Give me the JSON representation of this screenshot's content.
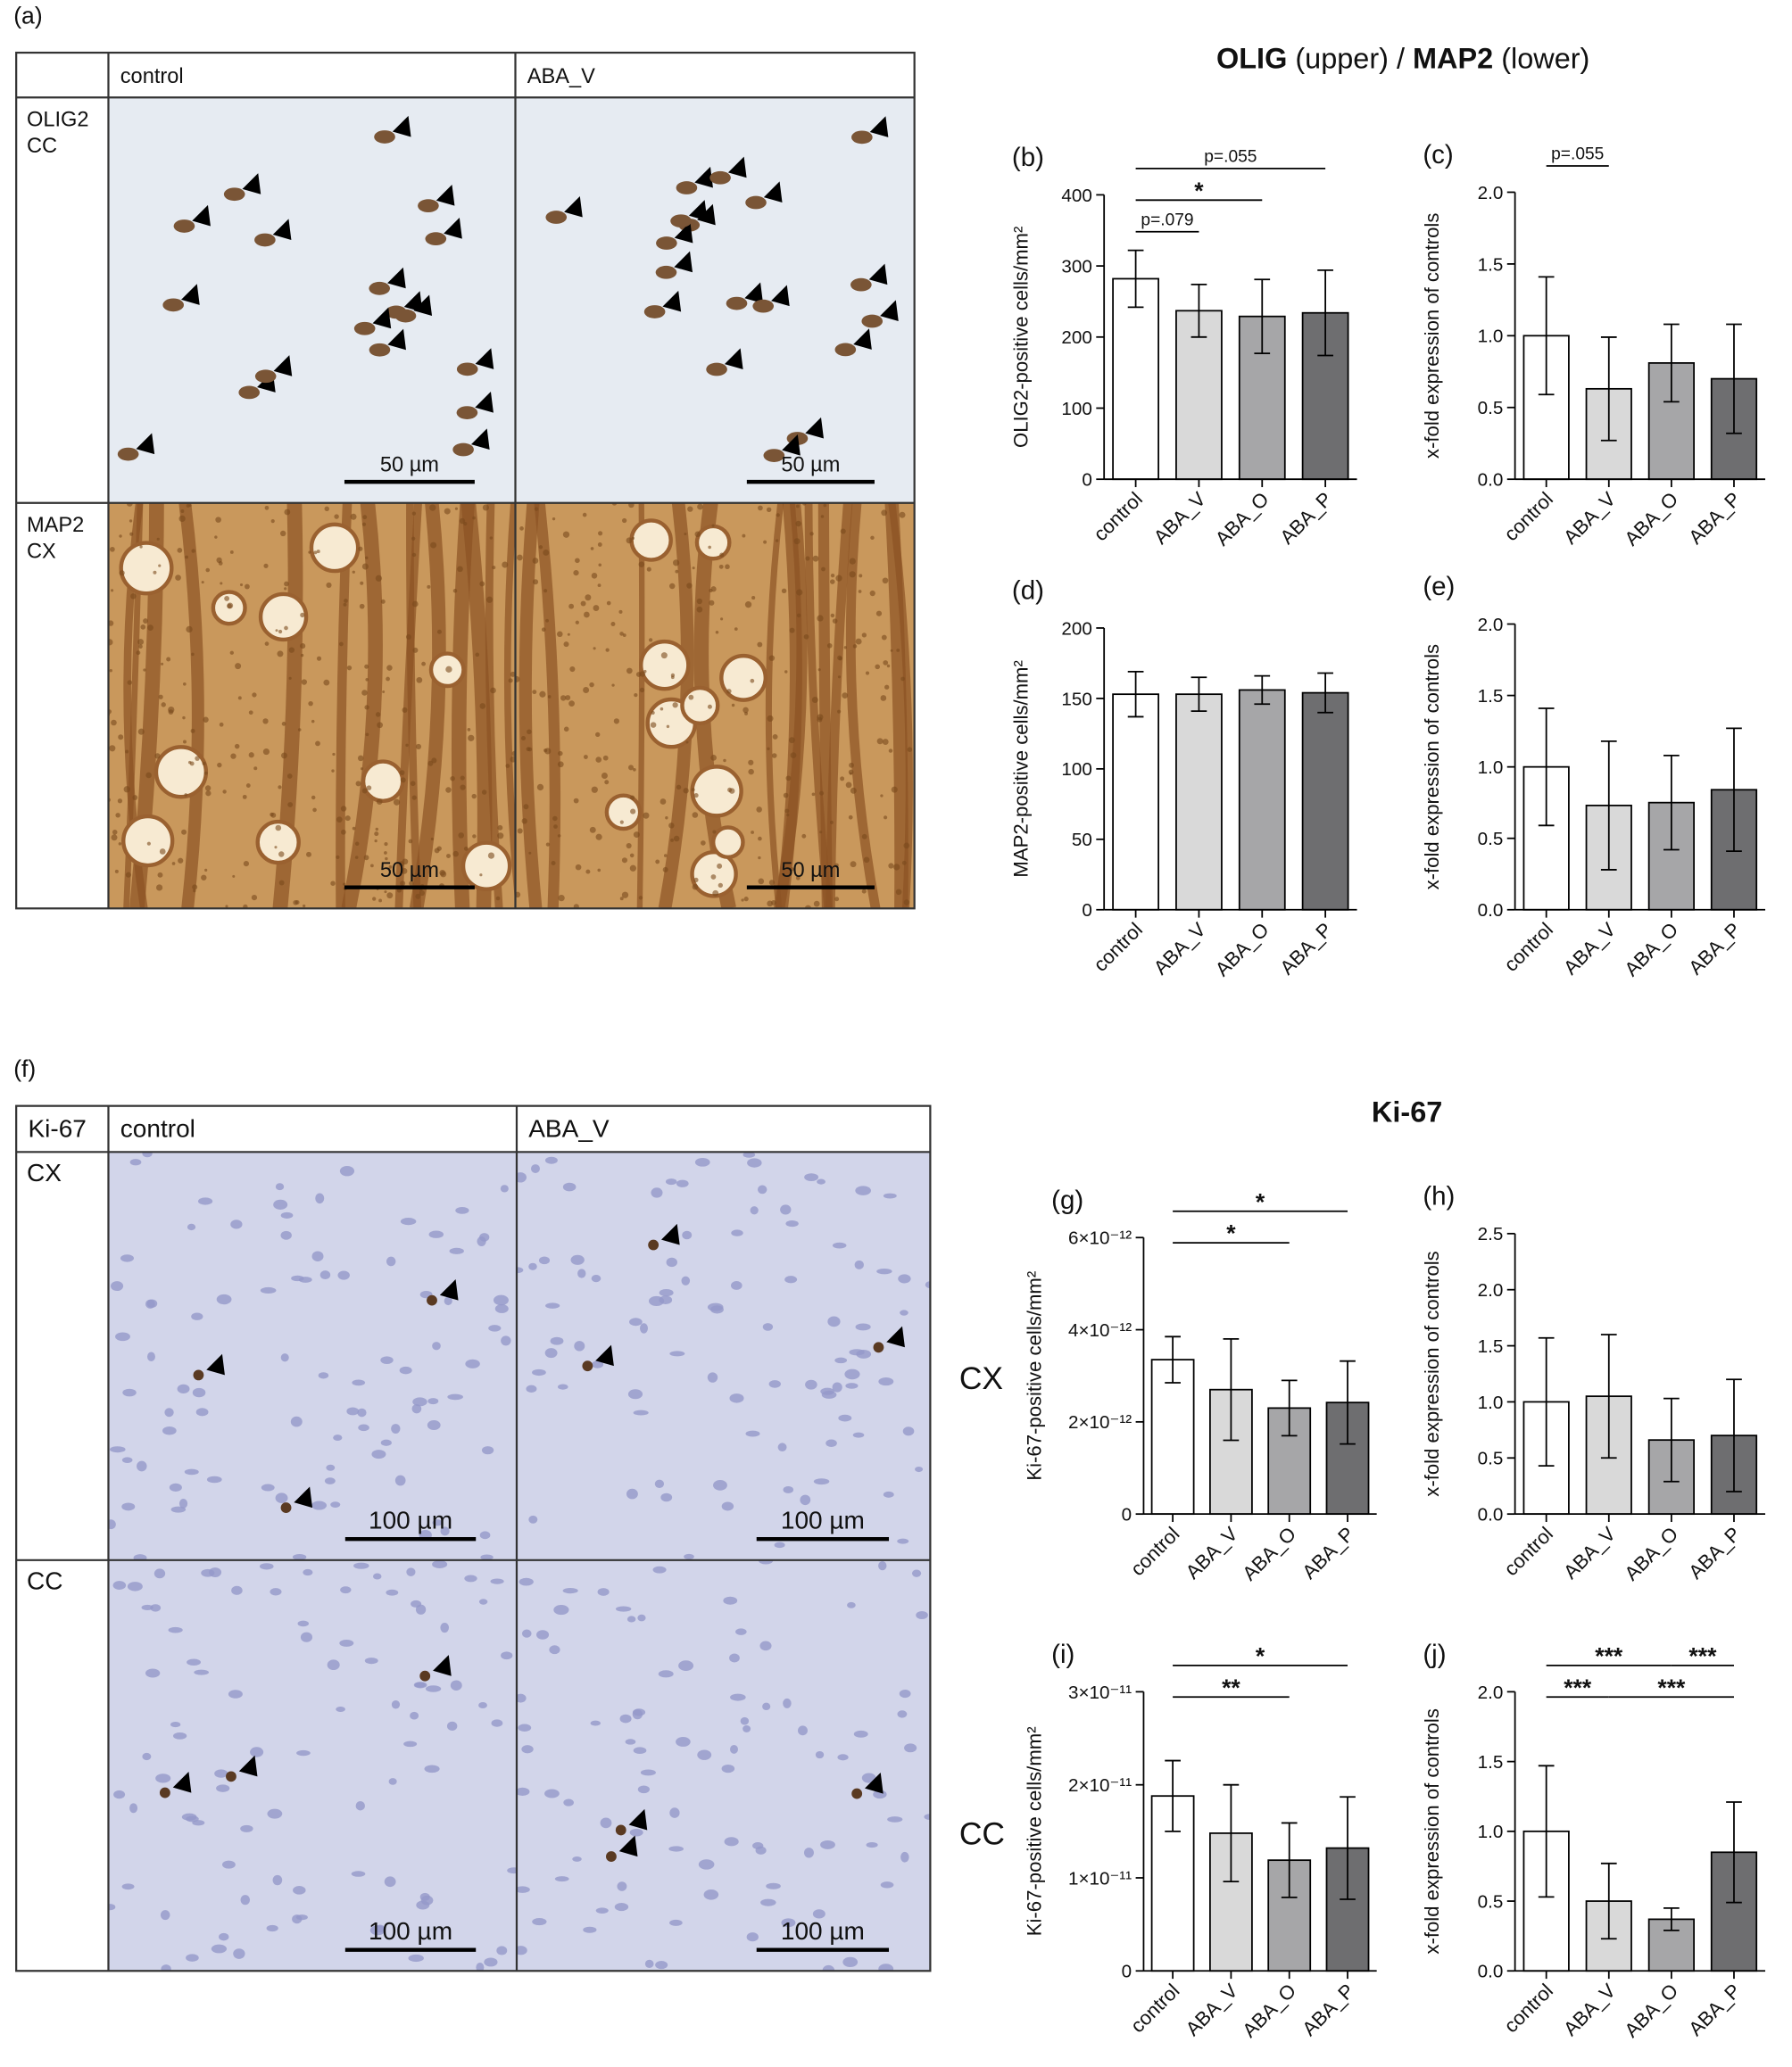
{
  "micrographs": {
    "a": {
      "panel_label": "(a)",
      "columns": [
        "control",
        "ABA_V"
      ],
      "rows": [
        {
          "lines": [
            "OLIG2",
            "CC"
          ],
          "scale_bar": "50 µm"
        },
        {
          "lines": [
            "MAP2",
            "CX"
          ],
          "scale_bar": "50 µm"
        }
      ]
    },
    "f": {
      "panel_label": "(f)",
      "corner": "Ki-67",
      "columns": [
        "control",
        "ABA_V"
      ],
      "rows": [
        {
          "lines": [
            "CX"
          ],
          "scale_bar": "100 µm"
        },
        {
          "lines": [
            "CC"
          ],
          "scale_bar": "100 µm"
        }
      ]
    }
  },
  "titles": [
    {
      "parts": [
        {
          "text": "OLIG",
          "bold": true
        },
        {
          "text": " (upper) / ",
          "bold": false
        },
        {
          "text": "MAP2",
          "bold": true
        },
        {
          "text": " (lower)",
          "bold": false
        }
      ]
    },
    {
      "parts": [
        {
          "text": "Ki-67",
          "bold": true
        }
      ]
    }
  ],
  "chart_data": [
    {
      "type": "bar",
      "panel_label": "(b)",
      "ylabel": "OLIG2-positive cells/mm²",
      "categories": [
        "control",
        "ABA_V",
        "ABA_O",
        "ABA_P"
      ],
      "values": [
        282,
        237,
        229,
        234
      ],
      "errors": [
        40,
        37,
        52,
        60
      ],
      "colors": [
        "#ffffff",
        "#d9d9d9",
        "#a6a6a8",
        "#6e6e70"
      ],
      "ylim": [
        0,
        400
      ],
      "yticks": [
        0,
        100,
        200,
        300,
        400
      ],
      "brackets": [
        {
          "label": "p=.055",
          "from": 0,
          "to": 3
        },
        {
          "label": "*",
          "from": 0,
          "to": 2
        },
        {
          "label": "p=.079",
          "from": 0,
          "to": 1
        }
      ]
    },
    {
      "type": "bar",
      "panel_label": "(c)",
      "ylabel": "x-fold expression of controls",
      "categories": [
        "control",
        "ABA_V",
        "ABA_O",
        "ABA_P"
      ],
      "values": [
        1.0,
        0.63,
        0.81,
        0.7
      ],
      "errors": [
        0.41,
        0.36,
        0.27,
        0.38
      ],
      "colors": [
        "#ffffff",
        "#d9d9d9",
        "#a6a6a8",
        "#6e6e70"
      ],
      "ylim": [
        0,
        2
      ],
      "yticks": [
        {
          "value": 0,
          "label": "0.0"
        },
        0.5,
        {
          "value": 1,
          "label": "1.0"
        },
        1.5,
        {
          "value": 2,
          "label": "2.0"
        }
      ],
      "brackets": [
        {
          "label": "p=.055",
          "from": 0,
          "to": 1
        }
      ]
    },
    {
      "type": "bar",
      "panel_label": "(d)",
      "ylabel": "MAP2-positive cells/mm²",
      "categories": [
        "control",
        "ABA_V",
        "ABA_O",
        "ABA_P"
      ],
      "values": [
        153,
        153,
        156,
        154
      ],
      "errors": [
        16,
        12,
        10,
        14
      ],
      "colors": [
        "#ffffff",
        "#d9d9d9",
        "#a6a6a8",
        "#6e6e70"
      ],
      "ylim": [
        0,
        200
      ],
      "yticks": [
        0,
        50,
        100,
        150,
        200
      ],
      "brackets": []
    },
    {
      "type": "bar",
      "panel_label": "(e)",
      "ylabel": "x-fold expression of controls",
      "categories": [
        "control",
        "ABA_V",
        "ABA_O",
        "ABA_P"
      ],
      "values": [
        1.0,
        0.73,
        0.75,
        0.84
      ],
      "errors": [
        0.41,
        0.45,
        0.33,
        0.43
      ],
      "colors": [
        "#ffffff",
        "#d9d9d9",
        "#a6a6a8",
        "#6e6e70"
      ],
      "ylim": [
        0,
        2
      ],
      "yticks": [
        {
          "value": 0,
          "label": "0.0"
        },
        0.5,
        {
          "value": 1,
          "label": "1.0"
        },
        1.5,
        {
          "value": 2,
          "label": "2.0"
        }
      ],
      "brackets": []
    },
    {
      "type": "bar",
      "panel_label": "(g)",
      "side_label": "CX",
      "ylabel": "Ki-67-positive cells/mm²",
      "categories": [
        "control",
        "ABA_V",
        "ABA_O",
        "ABA_P"
      ],
      "values": [
        3.35e-12,
        2.7e-12,
        2.3e-12,
        2.42e-12
      ],
      "errors": [
        5e-13,
        1.1e-12,
        6e-13,
        9e-13
      ],
      "colors": [
        "#ffffff",
        "#d9d9d9",
        "#a6a6a8",
        "#6e6e70"
      ],
      "ylim": [
        0,
        6e-12
      ],
      "yticks": [
        0,
        {
          "value": 2e-12,
          "label": "2×10⁻¹²"
        },
        {
          "value": 4e-12,
          "label": "4×10⁻¹²"
        },
        {
          "value": 6e-12,
          "label": "6×10⁻¹²"
        }
      ],
      "brackets": [
        {
          "label": "*",
          "from": 0,
          "to": 3
        },
        {
          "label": "*",
          "from": 0,
          "to": 2
        }
      ]
    },
    {
      "type": "bar",
      "panel_label": "(h)",
      "ylabel": "x-fold expression of controls",
      "categories": [
        "control",
        "ABA_V",
        "ABA_O",
        "ABA_P"
      ],
      "values": [
        1.0,
        1.05,
        0.66,
        0.7
      ],
      "errors": [
        0.57,
        0.55,
        0.37,
        0.5
      ],
      "colors": [
        "#ffffff",
        "#d9d9d9",
        "#a6a6a8",
        "#6e6e70"
      ],
      "ylim": [
        0,
        2.5
      ],
      "yticks": [
        {
          "value": 0,
          "label": "0.0"
        },
        0.5,
        {
          "value": 1,
          "label": "1.0"
        },
        1.5,
        {
          "value": 2,
          "label": "2.0"
        },
        2.5
      ],
      "brackets": []
    },
    {
      "type": "bar",
      "panel_label": "(i)",
      "side_label": "CC",
      "ylabel": "Ki-67-positive cells/mm²",
      "categories": [
        "control",
        "ABA_V",
        "ABA_O",
        "ABA_P"
      ],
      "values": [
        1.88e-11,
        1.48e-11,
        1.19e-11,
        1.32e-11
      ],
      "errors": [
        3.8e-12,
        5.2e-12,
        4e-12,
        5.5e-12
      ],
      "colors": [
        "#ffffff",
        "#d9d9d9",
        "#a6a6a8",
        "#6e6e70"
      ],
      "ylim": [
        0,
        3e-11
      ],
      "yticks": [
        0,
        {
          "value": 1e-11,
          "label": "1×10⁻¹¹"
        },
        {
          "value": 2e-11,
          "label": "2×10⁻¹¹"
        },
        {
          "value": 3e-11,
          "label": "3×10⁻¹¹"
        }
      ],
      "brackets": [
        {
          "label": "*",
          "from": 0,
          "to": 3
        },
        {
          "label": "**",
          "from": 0,
          "to": 2
        }
      ]
    },
    {
      "type": "bar",
      "panel_label": "(j)",
      "ylabel": "x-fold expression of controls",
      "categories": [
        "control",
        "ABA_V",
        "ABA_O",
        "ABA_P"
      ],
      "values": [
        1.0,
        0.5,
        0.37,
        0.85
      ],
      "errors": [
        0.47,
        0.27,
        0.08,
        0.36
      ],
      "colors": [
        "#ffffff",
        "#d9d9d9",
        "#a6a6a8",
        "#6e6e70"
      ],
      "ylim": [
        0,
        2
      ],
      "yticks": [
        {
          "value": 0,
          "label": "0.0"
        },
        0.5,
        {
          "value": 1,
          "label": "1.0"
        },
        1.5,
        {
          "value": 2,
          "label": "2.0"
        }
      ],
      "brackets": [
        {
          "label": "***",
          "from": 0,
          "to": 2
        },
        {
          "label": "***",
          "from": 0,
          "to": 1
        },
        {
          "label": "***",
          "from": 2,
          "to": 3
        },
        {
          "label": "***",
          "from": 1,
          "to": 3
        }
      ]
    }
  ]
}
